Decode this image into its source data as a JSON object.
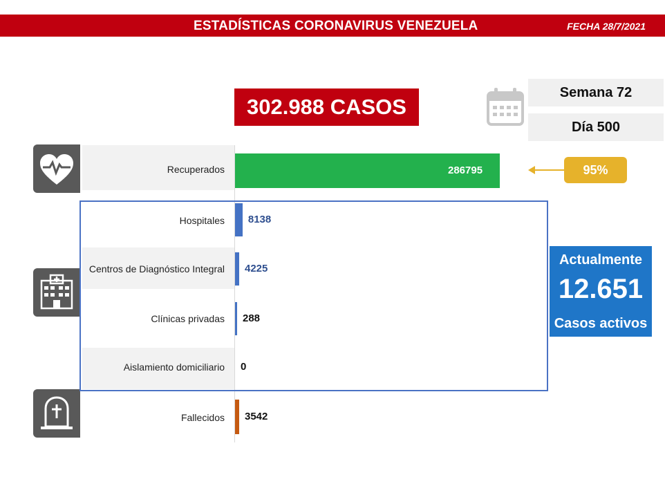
{
  "header": {
    "title": "ESTADÍSTICAS CORONAVIRUS VENEZUELA",
    "date": "FECHA 28/7/2021",
    "color": "#c0000f"
  },
  "total_cases": "302.988 CASOS",
  "week": "Semana 72",
  "day": "Día 500",
  "icons": {
    "calendar": "calendar-icon",
    "recovered": "heart-pulse-icon",
    "hospital": "hospital-icon",
    "deceased": "tombstone-icon"
  },
  "recovered_percent": "95%",
  "active": {
    "line1": "Actualmente",
    "value": "12.651",
    "line2": "Casos activos",
    "color": "#1f76c8"
  },
  "chart_data": {
    "type": "bar",
    "orientation": "horizontal",
    "categories": [
      "Recuperados",
      "Hospitales",
      "Centros de Diagnóstico Integral",
      "Clínicas privadas",
      "Aislamiento domiciliario",
      "Fallecidos"
    ],
    "values": [
      286795,
      8138,
      4225,
      288,
      0,
      3542
    ],
    "value_labels": [
      "286795",
      "8138",
      "4225",
      "288",
      "0",
      "3542"
    ],
    "colors": [
      "#23b14d",
      "#4472c4",
      "#4472c4",
      "#4472c4",
      "#4472c4",
      "#c55a11"
    ],
    "label_colors": [
      "#ffffff",
      "#2f4f8f",
      "#2f4f8f",
      "#111111",
      "#111111",
      "#111111"
    ],
    "xlim": [
      0,
      300000
    ],
    "grid": false
  }
}
